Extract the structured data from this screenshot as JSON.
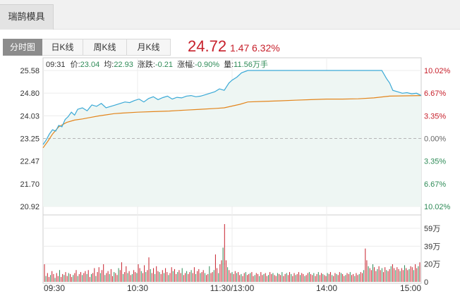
{
  "stock_tab": {
    "label": "瑞鹄模具"
  },
  "tabs": [
    {
      "label": "分时图",
      "active": true
    },
    {
      "label": "日K线",
      "active": false
    },
    {
      "label": "周K线",
      "active": false
    },
    {
      "label": "月K线",
      "active": false
    }
  ],
  "quote": {
    "price": "24.72",
    "change": "1.47",
    "change_pct": "6.32%"
  },
  "info_line": {
    "time": "09:31",
    "price_label": "价:",
    "price_value": "23.04",
    "avg_label": "均:",
    "avg_value": "22.93",
    "change_label": "涨跌:",
    "change_value": "-0.21",
    "amplitude_label": "涨幅:",
    "amplitude_value": "-0.90%",
    "volume_label": "量:",
    "volume_value": "11.56万手"
  },
  "colors": {
    "up": "#c7202b",
    "down": "#2e8b57",
    "price_line": "#3aa9d6",
    "avg_line": "#e3851c",
    "area_fill": "#eef6f3"
  },
  "chart_data": {
    "type": "line",
    "prev_close": 23.25,
    "y_ticks_left": [
      "25.58",
      "24.80",
      "24.03",
      "23.25",
      "22.47",
      "21.70",
      "20.92"
    ],
    "y_ticks_right": [
      "10.02%",
      "6.67%",
      "3.35%",
      "0.00%",
      "3.35%",
      "6.67%",
      "10.02%"
    ],
    "ylim": [
      20.92,
      25.58
    ],
    "x_ticks": [
      "09:30",
      "10:30",
      "11:30/13:00",
      "14:00",
      "15:00"
    ],
    "minute_range": [
      0,
      240
    ],
    "volume_ticks": [
      "59万",
      "39万",
      "20万",
      "0"
    ],
    "volume_max": 59,
    "series": [
      {
        "key": "price",
        "x": [
          0,
          2,
          4,
          6,
          8,
          10,
          12,
          14,
          16,
          18,
          20,
          22,
          25,
          28,
          31,
          34,
          37,
          40,
          43,
          46,
          49,
          52,
          55,
          58,
          61,
          64,
          67,
          70,
          73,
          76,
          79,
          82,
          85,
          88,
          91,
          94,
          97,
          100,
          103,
          106,
          109,
          112,
          115,
          118,
          120,
          123,
          126,
          130,
          135,
          140,
          145,
          150,
          155,
          160,
          165,
          170,
          175,
          180,
          185,
          190,
          195,
          200,
          205,
          210,
          215,
          218,
          220,
          222,
          225,
          228,
          231,
          234,
          237,
          240
        ],
        "y": [
          23.04,
          23.2,
          23.4,
          23.55,
          23.5,
          23.7,
          23.65,
          23.9,
          24.0,
          24.15,
          24.05,
          24.25,
          24.3,
          24.2,
          24.4,
          24.35,
          24.45,
          24.3,
          24.35,
          24.4,
          24.45,
          24.5,
          24.48,
          24.55,
          24.6,
          24.5,
          24.62,
          24.68,
          24.58,
          24.65,
          24.7,
          24.6,
          24.66,
          24.64,
          24.7,
          24.72,
          24.68,
          24.7,
          24.75,
          24.8,
          24.85,
          24.95,
          24.9,
          25.15,
          25.25,
          25.35,
          25.5,
          25.58,
          25.58,
          25.58,
          25.58,
          25.58,
          25.58,
          25.58,
          25.58,
          25.58,
          25.58,
          25.58,
          25.58,
          25.58,
          25.58,
          25.58,
          25.58,
          25.58,
          25.58,
          25.3,
          25.15,
          24.9,
          24.85,
          24.8,
          24.82,
          24.78,
          24.8,
          24.72
        ]
      },
      {
        "key": "average",
        "x": [
          0,
          3,
          6,
          10,
          15,
          20,
          25,
          30,
          35,
          40,
          45,
          50,
          60,
          70,
          80,
          90,
          100,
          110,
          115,
          120,
          125,
          130,
          140,
          150,
          160,
          170,
          180,
          190,
          200,
          210,
          220,
          230,
          240
        ],
        "y": [
          22.93,
          23.15,
          23.4,
          23.65,
          23.8,
          23.88,
          23.92,
          23.97,
          24.02,
          24.06,
          24.1,
          24.12,
          24.15,
          24.17,
          24.19,
          24.22,
          24.25,
          24.28,
          24.3,
          24.36,
          24.42,
          24.5,
          24.52,
          24.54,
          24.56,
          24.58,
          24.6,
          24.6,
          24.61,
          24.64,
          24.7,
          24.71,
          24.72
        ]
      }
    ],
    "volumes": [
      18,
      6,
      9,
      5,
      7,
      11,
      8,
      4,
      9,
      6,
      12,
      5,
      8,
      7,
      10,
      6,
      9,
      8,
      5,
      7,
      9,
      12,
      6,
      8,
      10,
      7,
      9,
      11,
      8,
      12,
      5,
      8,
      9,
      14,
      6,
      10,
      15,
      9,
      12,
      18,
      7,
      9,
      11,
      8,
      13,
      6,
      10,
      9,
      7,
      14,
      12,
      20,
      8,
      10,
      16,
      9,
      11,
      7,
      8,
      12,
      10,
      9,
      18,
      14,
      11,
      9,
      17,
      10,
      12,
      25,
      13,
      9,
      14,
      8,
      16,
      11,
      10,
      8,
      12,
      9,
      14,
      10,
      7,
      9,
      15,
      11,
      13,
      8,
      10,
      12,
      9,
      14,
      7,
      9,
      11,
      8,
      10,
      12,
      9,
      15,
      8,
      11,
      13,
      9,
      10,
      12,
      9,
      7,
      8,
      16,
      9,
      10,
      12,
      28,
      14,
      9,
      18,
      22,
      35,
      59,
      22,
      15,
      12,
      9,
      10,
      8,
      11,
      9,
      10,
      7,
      8,
      6,
      9,
      10,
      7,
      8,
      9,
      10,
      6,
      7,
      9,
      8,
      6,
      10,
      7,
      8,
      9,
      6,
      7,
      10,
      8,
      9,
      7,
      6,
      9,
      8,
      7,
      10,
      6,
      8,
      9,
      7,
      10,
      8,
      6,
      9,
      7,
      8,
      10,
      7,
      9,
      8,
      6,
      7,
      9,
      10,
      8,
      7,
      9,
      6,
      8,
      10,
      7,
      9,
      8,
      7,
      6,
      9,
      8,
      10,
      7,
      6,
      9,
      8,
      7,
      10,
      9,
      8,
      6,
      7,
      9,
      8,
      10,
      7,
      8,
      6,
      9,
      7,
      8,
      10,
      9,
      12,
      34,
      22,
      16,
      14,
      12,
      18,
      15,
      11,
      13,
      16,
      12,
      14,
      10,
      15,
      12,
      11,
      13,
      16,
      18,
      14,
      12,
      15,
      13,
      11,
      14,
      12,
      17,
      14,
      12,
      13,
      16,
      15,
      12,
      18,
      14,
      16,
      20
    ]
  }
}
